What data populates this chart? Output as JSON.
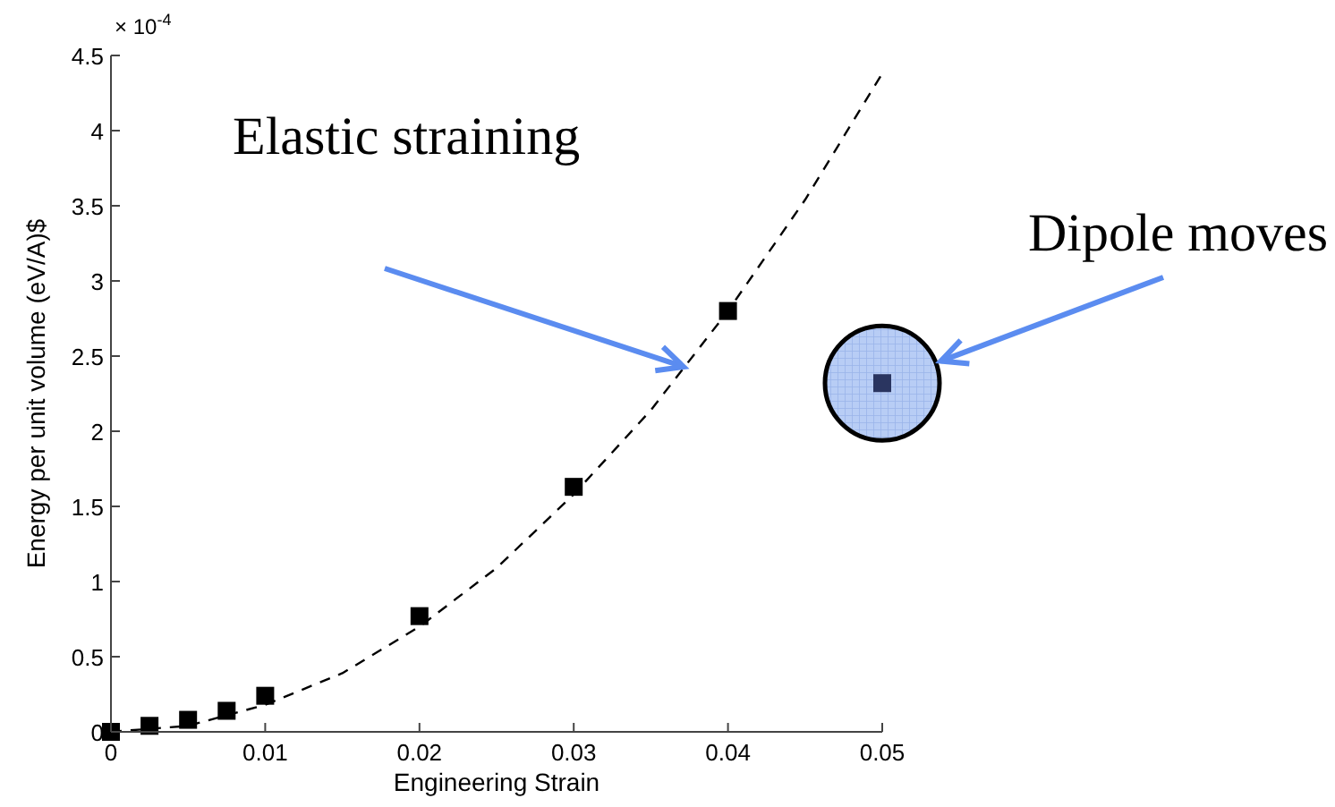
{
  "chart_data": {
    "type": "scatter",
    "xlabel": "Engineering Strain",
    "ylabel": "Energy per unit volume (eV/A)$",
    "xlim": [
      0,
      0.05
    ],
    "xticks": [
      0,
      0.01,
      0.02,
      0.03,
      0.04,
      0.05
    ],
    "ylim": [
      0,
      4.5
    ],
    "yticks": [
      0,
      0.5,
      1,
      1.5,
      2,
      2.5,
      3,
      3.5,
      4,
      4.5
    ],
    "grid": false,
    "series": [
      {
        "type": "line",
        "x": [
          0,
          0.005,
          0.01,
          0.015,
          0.02,
          0.025,
          0.03,
          0.035,
          0.04,
          0.045,
          0.05
        ],
        "values": [
          0,
          0.04,
          0.18,
          0.39,
          0.7,
          1.09,
          1.58,
          2.14,
          2.8,
          3.54,
          4.38
        ],
        "color": "#000000",
        "line_style": "dashed",
        "marker": "none"
      },
      {
        "x": [
          0,
          0.0025,
          0.005,
          0.0075,
          0.01,
          0.02,
          0.03,
          0.04
        ],
        "values": [
          0,
          0.04,
          0.08,
          0.14,
          0.24,
          0.77,
          1.63,
          2.8
        ],
        "color": "#000000",
        "marker": "square"
      },
      {
        "x": [
          0.05
        ],
        "values": [
          2.32
        ],
        "color": "#2a3560",
        "marker": "square"
      }
    ],
    "annotations": [
      "× 10$^{-4}$",
      "Elastic straining",
      "Dipole moves"
    ]
  }
}
